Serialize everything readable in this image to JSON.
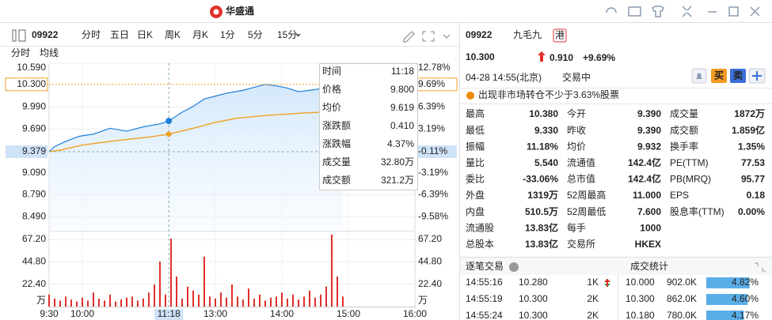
{
  "header": {
    "logo": "华盛通"
  },
  "toolbar": {
    "code": "09922",
    "tabs": [
      "分时",
      "五日",
      "日K",
      "周K",
      "月K",
      "1分",
      "5分",
      "15分"
    ]
  },
  "chart": {
    "legend": [
      {
        "name": "分时",
        "color": "#1e7fd8"
      },
      {
        "name": "均线",
        "color": "#f0a020"
      }
    ],
    "xlim": [
      0,
      330
    ],
    "xticks": [
      {
        "value": 0,
        "label": "9:30"
      },
      {
        "value": 30,
        "label": "10:00"
      },
      {
        "value": 150,
        "label": "13:00"
      },
      {
        "value": 210,
        "label": "14:00"
      },
      {
        "value": 270,
        "label": "15:00"
      },
      {
        "value": 330,
        "label": "16:00"
      }
    ],
    "ylim": [
      8.32,
      10.59
    ],
    "yticks": [
      {
        "value": 10.59,
        "label": "10.590"
      },
      {
        "value": 9.99,
        "label": "9.990"
      },
      {
        "value": 9.69,
        "label": "9.690"
      },
      {
        "value": 9.09,
        "label": "9.090"
      },
      {
        "value": 8.79,
        "label": "8.790"
      },
      {
        "value": 8.49,
        "label": "8.490"
      }
    ],
    "y2lim": [
      -11.4,
      12.78
    ],
    "y2ticks": [
      {
        "value": 12.78,
        "label": "12.78%"
      },
      {
        "value": 6.39,
        "label": "6.39%"
      },
      {
        "value": 3.19,
        "label": "3.19%"
      },
      {
        "value": -3.19,
        "label": "-3.19%"
      },
      {
        "value": -6.39,
        "label": "-6.39%"
      },
      {
        "value": -9.58,
        "label": "-9.58%"
      }
    ],
    "last_price": {
      "value": 10.3,
      "label": "10.300",
      "pct": {
        "value": 9.69,
        "label": "9.69%"
      }
    },
    "crosshair": {
      "time": {
        "value": 108,
        "label": "11:18"
      },
      "price": 9.379,
      "pct": {
        "value": -0.11,
        "label": "-0.11%"
      }
    },
    "price_line": {
      "color": "#1e7fd8",
      "x": [
        0,
        5,
        15,
        27,
        40,
        55,
        70,
        85,
        100,
        108,
        120,
        130,
        140,
        150,
        160,
        175,
        185,
        195,
        205,
        215,
        225,
        235,
        245,
        255,
        265
      ],
      "values": [
        9.38,
        9.45,
        9.52,
        9.59,
        9.62,
        9.7,
        9.66,
        9.72,
        9.76,
        9.8,
        9.92,
        10.0,
        10.1,
        10.14,
        10.18,
        10.22,
        10.26,
        10.3,
        10.28,
        10.25,
        10.2,
        10.22,
        10.24,
        10.26,
        10.3
      ]
    },
    "avg_line": {
      "color": "#f0a020",
      "x": [
        0,
        10,
        30,
        60,
        90,
        108,
        130,
        150,
        170,
        200,
        230,
        265
      ],
      "values": [
        9.38,
        9.4,
        9.47,
        9.53,
        9.58,
        9.619,
        9.7,
        9.78,
        9.84,
        9.88,
        9.91,
        9.932
      ]
    },
    "volume": {
      "color": "#e0302a",
      "ylim": [
        0,
        73.5
      ],
      "yticks": [
        {
          "value": 67.2,
          "label": "67.20"
        },
        {
          "value": 44.8,
          "label": "44.80"
        },
        {
          "value": 22.4,
          "label": "22.40"
        }
      ],
      "unit": "万",
      "x": [
        0,
        5,
        10,
        15,
        20,
        25,
        30,
        35,
        40,
        45,
        50,
        55,
        60,
        65,
        70,
        75,
        80,
        85,
        90,
        95,
        100,
        105,
        110,
        115,
        120,
        125,
        130,
        135,
        140,
        145,
        150,
        155,
        160,
        165,
        170,
        175,
        180,
        185,
        190,
        195,
        200,
        205,
        210,
        215,
        220,
        225,
        230,
        235,
        240,
        245,
        250,
        255,
        260,
        265
      ],
      "values": [
        12,
        8,
        6,
        10,
        7,
        5,
        9,
        6,
        14,
        8,
        6,
        12,
        5,
        7,
        9,
        10,
        6,
        8,
        14,
        22,
        45,
        12,
        68,
        30,
        8,
        20,
        16,
        12,
        50,
        10,
        8,
        14,
        9,
        22,
        10,
        7,
        18,
        8,
        12,
        6,
        9,
        10,
        14,
        8,
        12,
        7,
        10,
        16,
        9,
        12,
        20,
        72,
        30,
        10
      ]
    },
    "tooltip": [
      {
        "label": "时间",
        "value": "11:18"
      },
      {
        "label": "价格",
        "value": "9.800",
        "color": "#e0302a"
      },
      {
        "label": "均价",
        "value": "9.619",
        "color": "#e0302a"
      },
      {
        "label": "涨跌额",
        "value": "0.410",
        "color": "#e0302a"
      },
      {
        "label": "涨跌幅",
        "value": "4.37%",
        "color": "#e0302a"
      },
      {
        "label": "成交量",
        "value": "32.80万"
      },
      {
        "label": "成交额",
        "value": "321.2万"
      }
    ]
  },
  "quote": {
    "code": "09922",
    "name": "九毛九",
    "market": "港",
    "price": "10.300",
    "change": "0.910",
    "change_pct": "+9.69%",
    "time": "04-28 14:55(北京)",
    "status": "交易中",
    "buy": "买",
    "sell": "卖",
    "notice": "出现非市场转仓不少于3.63%股票"
  },
  "stats": [
    [
      {
        "label": "最高",
        "value": "10.380",
        "color": "#e0302a"
      },
      {
        "label": "今开",
        "value": "9.390",
        "color": "#999"
      },
      {
        "label": "成交量",
        "value": "1872万"
      }
    ],
    [
      {
        "label": "最低",
        "value": "9.330",
        "color": "#1aa33a"
      },
      {
        "label": "昨收",
        "value": "9.390"
      },
      {
        "label": "成交额",
        "value": "1.859亿"
      }
    ],
    [
      {
        "label": "振幅",
        "value": "11.18%"
      },
      {
        "label": "均价",
        "value": "9.932"
      },
      {
        "label": "换手率",
        "value": "1.35%"
      }
    ],
    [
      {
        "label": "量比",
        "value": "5.540"
      },
      {
        "label": "流通值",
        "value": "142.4亿"
      },
      {
        "label": "PE(TTM)",
        "value": "77.53"
      }
    ],
    [
      {
        "label": "委比",
        "value": "-33.06%"
      },
      {
        "label": "总市值",
        "value": "142.4亿"
      },
      {
        "label": "PB(MRQ)",
        "value": "95.77"
      }
    ],
    [
      {
        "label": "外盘",
        "value": "1319万",
        "color": "#e0302a"
      },
      {
        "label": "52周最高",
        "value": "11.000",
        "color": "#e0302a"
      },
      {
        "label": "EPS",
        "value": "0.18"
      }
    ],
    [
      {
        "label": "内盘",
        "value": "510.5万",
        "color": "#1aa33a"
      },
      {
        "label": "52周最低",
        "value": "7.600",
        "color": "#1aa33a"
      },
      {
        "label": "股息率(TTM)",
        "value": "0.00%"
      }
    ],
    [
      {
        "label": "流通股",
        "value": "13.83亿"
      },
      {
        "label": "每手",
        "value": "1000"
      }
    ],
    [
      {
        "label": "总股本",
        "value": "13.83亿"
      },
      {
        "label": "交易所",
        "value": "HKEX"
      }
    ]
  ],
  "trades": {
    "title": "逐笔交易",
    "rows": [
      {
        "time": "14:55:16",
        "price": "10.280",
        "volume": "1K",
        "direction": "down"
      },
      {
        "time": "14:55:19",
        "price": "10.300",
        "volume": "2K",
        "direction": "up"
      },
      {
        "time": "14:55:24",
        "price": "10.300",
        "volume": "2K",
        "direction": "up"
      }
    ]
  },
  "distribution": {
    "title": "成交统计",
    "xlim": [
      0,
      6
    ],
    "rows": [
      {
        "price": "10.000",
        "volume": "902.0K",
        "share": 4.82,
        "share_label": "4.82%"
      },
      {
        "price": "10.300",
        "volume": "862.0K",
        "share": 4.6,
        "share_label": "4.60%"
      },
      {
        "price": "10.180",
        "volume": "780.0K",
        "share": 4.17,
        "share_label": "4.17%"
      }
    ]
  }
}
